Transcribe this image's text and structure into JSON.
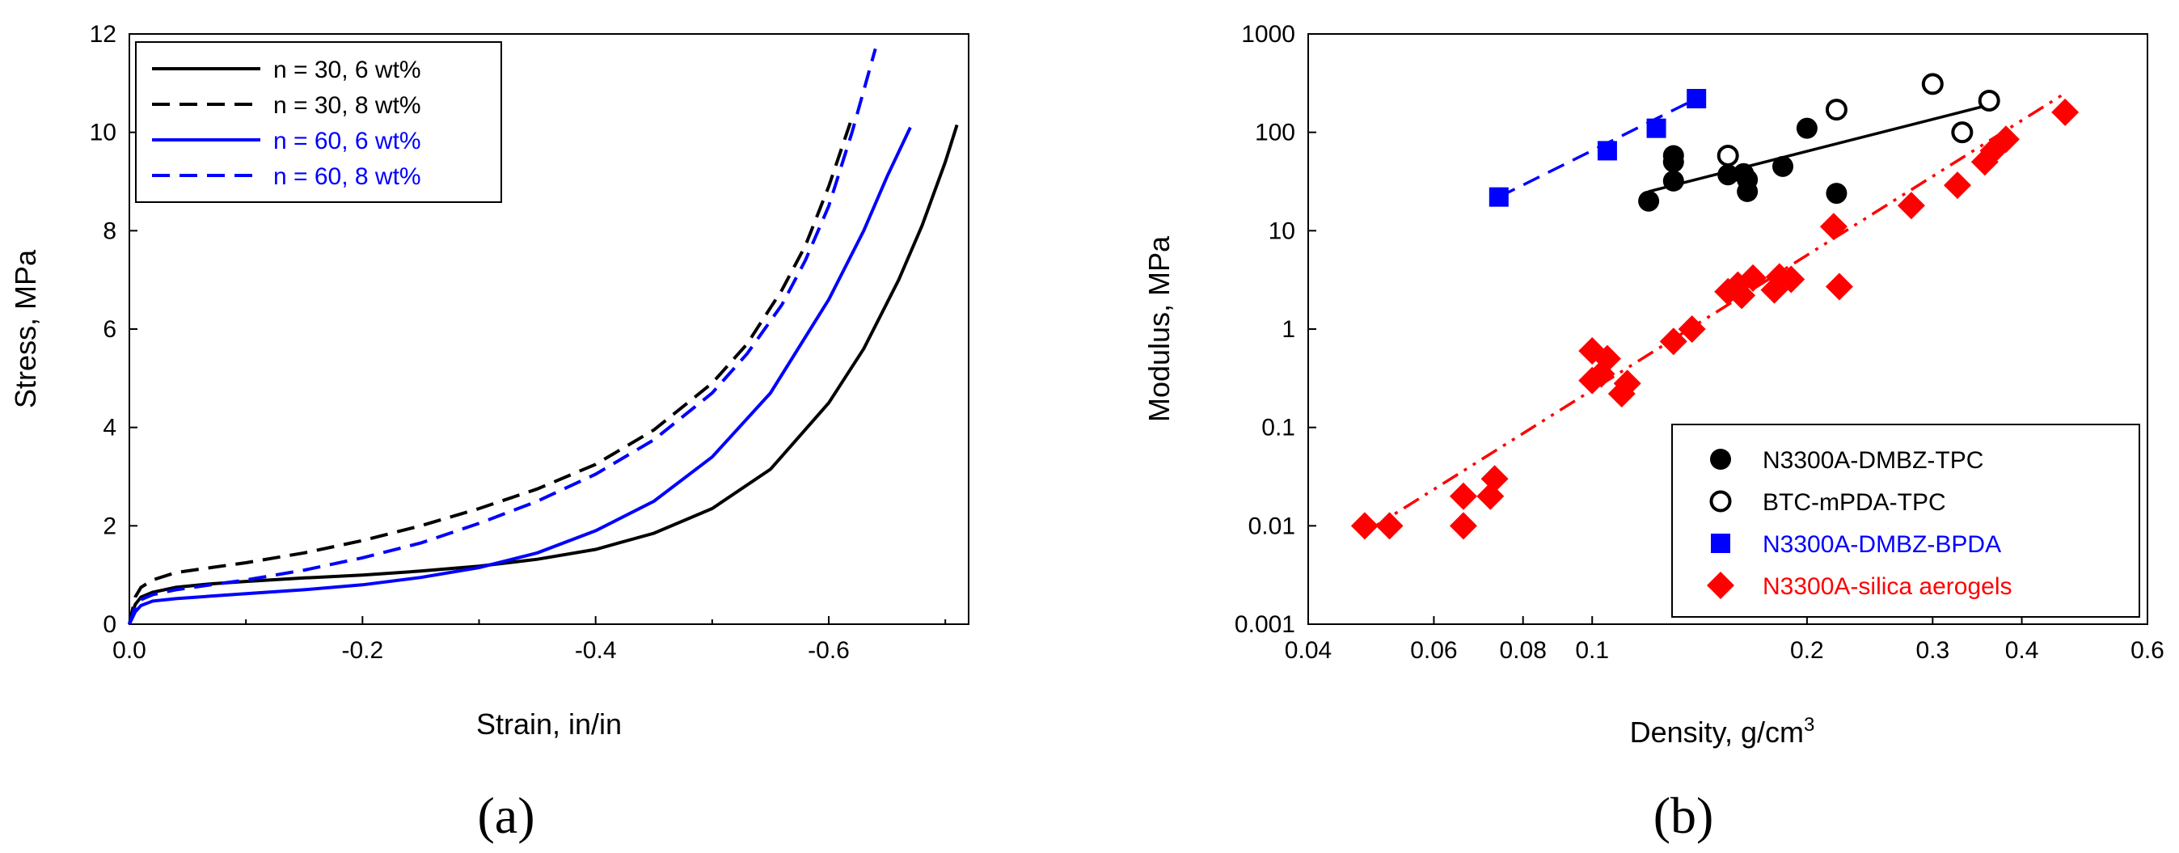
{
  "chart_data": [
    {
      "type": "line",
      "panel_label": "(a)",
      "xlabel": "Strain, in/in",
      "ylabel": "Stress, MPa",
      "xlim": [
        0.0,
        -0.72
      ],
      "ylim": [
        0,
        12
      ],
      "x_ticks": [
        "0.0",
        "-0.2",
        "-0.4",
        "-0.6"
      ],
      "x_tick_values": [
        0.0,
        -0.2,
        -0.4,
        -0.6
      ],
      "y_ticks": [
        "0",
        "2",
        "4",
        "6",
        "8",
        "10",
        "12"
      ],
      "y_tick_values": [
        0,
        2,
        4,
        6,
        8,
        10,
        12
      ],
      "legend_position": "top-left",
      "series": [
        {
          "name": "n = 30, 6 wt%",
          "color": "#000000",
          "style": "solid",
          "x": [
            0.0,
            -0.005,
            -0.01,
            -0.02,
            -0.04,
            -0.07,
            -0.1,
            -0.15,
            -0.2,
            -0.25,
            -0.3,
            -0.35,
            -0.4,
            -0.45,
            -0.5,
            -0.55,
            -0.6,
            -0.63,
            -0.66,
            -0.68,
            -0.7,
            -0.71
          ],
          "y": [
            0,
            0.4,
            0.55,
            0.65,
            0.75,
            0.82,
            0.87,
            0.94,
            1.0,
            1.08,
            1.18,
            1.32,
            1.52,
            1.85,
            2.35,
            3.15,
            4.5,
            5.6,
            7.0,
            8.1,
            9.4,
            10.15
          ]
        },
        {
          "name": "n = 30, 8 wt%",
          "color": "#000000",
          "style": "dashed",
          "x": [
            0.0,
            -0.005,
            -0.01,
            -0.02,
            -0.04,
            -0.07,
            -0.1,
            -0.15,
            -0.2,
            -0.25,
            -0.3,
            -0.35,
            -0.4,
            -0.45,
            -0.5,
            -0.53,
            -0.56,
            -0.58,
            -0.6,
            -0.62
          ],
          "y": [
            0,
            0.55,
            0.75,
            0.9,
            1.05,
            1.15,
            1.25,
            1.45,
            1.7,
            2.0,
            2.35,
            2.75,
            3.25,
            3.95,
            4.9,
            5.7,
            6.8,
            7.7,
            8.9,
            10.3
          ]
        },
        {
          "name": "n = 60, 6 wt%",
          "color": "#0000ff",
          "style": "solid",
          "x": [
            0.0,
            -0.005,
            -0.01,
            -0.02,
            -0.04,
            -0.07,
            -0.1,
            -0.15,
            -0.2,
            -0.25,
            -0.3,
            -0.35,
            -0.4,
            -0.45,
            -0.5,
            -0.55,
            -0.6,
            -0.63,
            -0.65,
            -0.67
          ],
          "y": [
            0,
            0.25,
            0.38,
            0.47,
            0.52,
            0.57,
            0.62,
            0.7,
            0.8,
            0.95,
            1.15,
            1.45,
            1.9,
            2.5,
            3.4,
            4.7,
            6.6,
            8.0,
            9.1,
            10.1
          ]
        },
        {
          "name": "n = 60, 8 wt%",
          "color": "#0000ff",
          "style": "dashed",
          "x": [
            0.0,
            -0.005,
            -0.01,
            -0.02,
            -0.04,
            -0.07,
            -0.1,
            -0.15,
            -0.2,
            -0.25,
            -0.3,
            -0.35,
            -0.4,
            -0.45,
            -0.5,
            -0.53,
            -0.56,
            -0.58,
            -0.6,
            -0.62,
            -0.64
          ],
          "y": [
            0,
            0.35,
            0.5,
            0.6,
            0.7,
            0.8,
            0.9,
            1.1,
            1.35,
            1.65,
            2.05,
            2.5,
            3.05,
            3.75,
            4.7,
            5.5,
            6.5,
            7.4,
            8.5,
            10.0,
            11.7
          ]
        }
      ]
    },
    {
      "type": "scatter",
      "panel_label": "(b)",
      "xlabel": "Density, g/cm",
      "xlabel_superscript": "3",
      "ylabel": "Modulus, MPa",
      "xscale": "log",
      "yscale": "log",
      "xlim": [
        0.04,
        0.6
      ],
      "ylim": [
        0.001,
        1000
      ],
      "x_ticks": [
        "0.04",
        "0.06",
        "0.08",
        "0.1",
        "0.2",
        "0.3",
        "0.4",
        "0.6"
      ],
      "x_tick_values": [
        0.04,
        0.06,
        0.08,
        0.1,
        0.2,
        0.3,
        0.4,
        0.6
      ],
      "y_ticks": [
        "0.001",
        "0.01",
        "0.1",
        "1",
        "10",
        "100",
        "1000"
      ],
      "y_tick_values": [
        0.001,
        0.01,
        0.1,
        1,
        10,
        100,
        1000
      ],
      "legend_position": "bottom-right",
      "series": [
        {
          "name": "N3300A-DMBZ-TPC",
          "color": "#000000",
          "marker": "filled-circle",
          "label_color": "#000000",
          "x": [
            0.12,
            0.13,
            0.13,
            0.13,
            0.155,
            0.163,
            0.165,
            0.165,
            0.185,
            0.2,
            0.22
          ],
          "y": [
            20,
            32,
            50,
            58,
            37,
            38,
            25,
            33,
            45,
            110,
            24
          ],
          "fit": {
            "x": [
              0.12,
              0.36
            ],
            "y": [
              25,
              190
            ],
            "style": "solid"
          }
        },
        {
          "name": "BTC-mPDA-TPC",
          "color": "#000000",
          "marker": "open-circle",
          "label_color": "#000000",
          "x": [
            0.155,
            0.22,
            0.3,
            0.33,
            0.36
          ],
          "y": [
            58,
            170,
            310,
            100,
            210
          ]
        },
        {
          "name": "N3300A-DMBZ-BPDA",
          "color": "#0000ff",
          "marker": "square",
          "label_color": "#0000ff",
          "x": [
            0.074,
            0.105,
            0.123,
            0.14
          ],
          "y": [
            22,
            65,
            110,
            220
          ],
          "fit": {
            "x": [
              0.074,
              0.14
            ],
            "y": [
              22,
              220
            ],
            "style": "dashed"
          }
        },
        {
          "name": "N3300A-silica aerogels",
          "color": "#ff0000",
          "marker": "diamond",
          "label_color": "#ff0000",
          "x": [
            0.048,
            0.052,
            0.066,
            0.066,
            0.072,
            0.073,
            0.1,
            0.1,
            0.103,
            0.105,
            0.11,
            0.112,
            0.13,
            0.138,
            0.155,
            0.16,
            0.162,
            0.168,
            0.18,
            0.183,
            0.19,
            0.218,
            0.222,
            0.28,
            0.325,
            0.355,
            0.365,
            0.38,
            0.46
          ],
          "y": [
            0.01,
            0.01,
            0.01,
            0.02,
            0.02,
            0.03,
            0.3,
            0.6,
            0.35,
            0.5,
            0.22,
            0.28,
            0.75,
            1.0,
            2.4,
            2.8,
            2.2,
            3.3,
            2.5,
            3.4,
            3.2,
            11,
            2.7,
            18,
            29,
            50,
            65,
            85,
            160
          ],
          "fit": {
            "x": [
              0.048,
              0.46
            ],
            "y": [
              0.0085,
              250
            ],
            "style": "dash-dot"
          }
        }
      ]
    }
  ]
}
